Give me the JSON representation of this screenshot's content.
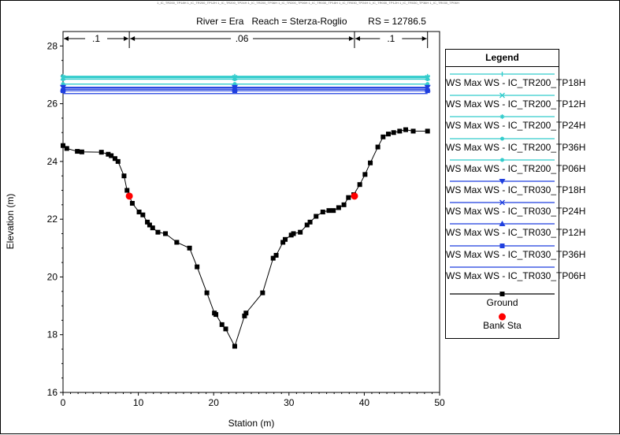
{
  "window": {
    "caption": "1_IC_TR200_TP18H 1_IC_TR200_TP12H 1_IC_TR200_TP24H 1_IC_TR200_TP36H 1_IC_TR200_TP06H 1_IC_TR030_TP18H 1_IC_TR030_TP24H 1_IC_TR030_TP12H 1_IC_TR030_TP36H 1_IC_TR030_TP06H"
  },
  "chart_data": {
    "type": "line",
    "title": "River = Era   Reach = Sterza-Roglio        RS = 12786.5",
    "xlabel": "Station (m)",
    "ylabel": "Elevation (m)",
    "xlim": [
      0,
      50
    ],
    "ylim": [
      16,
      28.5
    ],
    "xticks": [
      "0",
      "10",
      "20",
      "30",
      "40",
      "50"
    ],
    "yticks": [
      "16",
      "18",
      "20",
      "22",
      "24",
      "26",
      "28"
    ],
    "grid": false,
    "legend_position": "right",
    "legend_title": "Legend",
    "mannings_n": [
      {
        "label": ".1",
        "x_start": 0,
        "x_end": 8.8
      },
      {
        "label": ".06",
        "x_start": 8.8,
        "x_end": 38.7
      },
      {
        "label": ".1",
        "x_start": 38.7,
        "x_end": 48.4
      }
    ],
    "series": [
      {
        "name": "WS Max WS - IC_TR200_TP18H",
        "color": "#33cccc",
        "marker": "tick",
        "x": [
          0,
          22.8,
          48.4
        ],
        "y": [
          26.95,
          26.95,
          26.95
        ]
      },
      {
        "name": "WS Max WS - IC_TR200_TP12H",
        "color": "#33cccc",
        "marker": "x",
        "x": [
          0,
          22.8,
          48.4
        ],
        "y": [
          26.9,
          26.9,
          26.9
        ]
      },
      {
        "name": "WS Max WS - IC_TR200_TP24H",
        "color": "#33cccc",
        "marker": "star",
        "x": [
          0,
          22.8,
          48.4
        ],
        "y": [
          26.93,
          26.93,
          26.93
        ]
      },
      {
        "name": "WS Max WS - IC_TR200_TP36H",
        "color": "#33cccc",
        "marker": "dot",
        "x": [
          0,
          22.8,
          48.4
        ],
        "y": [
          26.85,
          26.85,
          26.85
        ]
      },
      {
        "name": "WS Max WS - IC_TR200_TP06H",
        "color": "#33cccc",
        "marker": "dot",
        "x": [
          0,
          22.8,
          48.4
        ],
        "y": [
          26.68,
          26.68,
          26.68
        ]
      },
      {
        "name": "WS Max WS - IC_TR030_TP18H",
        "color": "#1f3fdf",
        "marker": "triangle-down",
        "x": [
          0,
          22.8,
          48.4
        ],
        "y": [
          26.57,
          26.57,
          26.57
        ]
      },
      {
        "name": "WS Max WS - IC_TR030_TP24H",
        "color": "#1f3fdf",
        "marker": "x",
        "x": [
          0,
          22.8,
          48.4
        ],
        "y": [
          26.55,
          26.55,
          26.55
        ]
      },
      {
        "name": "WS Max WS - IC_TR030_TP12H",
        "color": "#1f3fdf",
        "marker": "triangle-up",
        "x": [
          0,
          22.8,
          48.4
        ],
        "y": [
          26.5,
          26.5,
          26.5
        ]
      },
      {
        "name": "WS Max WS - IC_TR030_TP36H",
        "color": "#1f3fdf",
        "marker": "square",
        "x": [
          0,
          22.8,
          48.4
        ],
        "y": [
          26.45,
          26.45,
          26.45
        ]
      },
      {
        "name": "WS Max WS - IC_TR030_TP06H",
        "color": "#1f3fdf",
        "marker": "none",
        "x": [
          0,
          22.8,
          48.4
        ],
        "y": [
          26.35,
          26.35,
          26.35
        ]
      },
      {
        "name": "Ground",
        "color": "#000000",
        "marker": "square",
        "x": [
          0,
          0.5,
          1.9,
          2.5,
          5.1,
          6.0,
          6.4,
          6.9,
          7.3,
          8.1,
          8.5,
          9.2,
          10.1,
          10.6,
          11.2,
          11.5,
          11.9,
          12.6,
          13.6,
          15.1,
          16.8,
          17.8,
          19.1,
          20.1,
          20.3,
          21.1,
          21.6,
          22.8,
          24.1,
          24.3,
          26.5,
          27.9,
          28.3,
          29.2,
          29.5,
          30.3,
          30.6,
          31.5,
          32.4,
          32.8,
          33.6,
          34.5,
          35.3,
          35.9,
          36.6,
          37.3,
          37.9,
          38.6,
          39.4,
          40.1,
          40.8,
          41.8,
          42.5,
          43.2,
          43.9,
          44.7,
          45.5,
          46.5,
          48.4
        ],
        "y": [
          24.55,
          24.45,
          24.35,
          24.33,
          24.32,
          24.25,
          24.2,
          24.1,
          24.0,
          23.5,
          23.0,
          22.55,
          22.25,
          22.15,
          21.9,
          21.8,
          21.7,
          21.55,
          21.5,
          21.2,
          21.0,
          20.35,
          19.45,
          18.75,
          18.7,
          18.35,
          18.2,
          17.6,
          18.65,
          18.75,
          19.45,
          20.65,
          20.75,
          21.2,
          21.3,
          21.45,
          21.5,
          21.55,
          21.8,
          21.9,
          22.1,
          22.25,
          22.3,
          22.3,
          22.4,
          22.5,
          22.75,
          22.85,
          23.2,
          23.55,
          23.95,
          24.5,
          24.85,
          24.95,
          25.0,
          25.05,
          25.1,
          25.05,
          25.05
        ]
      },
      {
        "name": "Bank Sta",
        "color": "#ff0000",
        "marker": "circle",
        "x": [
          8.8,
          38.7
        ],
        "y": [
          22.8,
          22.8
        ]
      }
    ]
  }
}
